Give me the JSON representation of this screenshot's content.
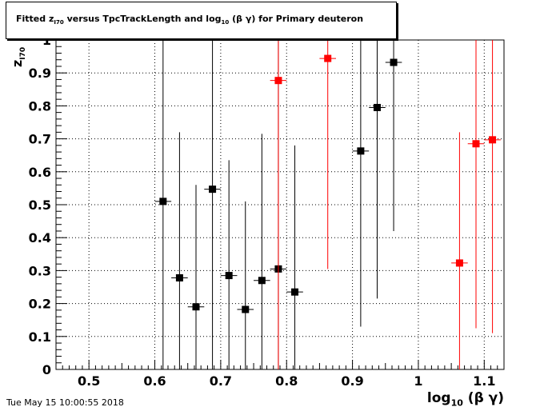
{
  "title": {
    "pre": "Fitted  z",
    "sub1": "I70",
    "mid": "  versus TpcTrackLength and log",
    "sub2": "10",
    "post": " (β γ) for Primary deuteron"
  },
  "datestamp": "Tue May 15 10:00:55 2018",
  "colors": {
    "black_series": "#000000",
    "red_series": "#ff0000",
    "grid": "#000000",
    "frame": "#000000"
  },
  "chart_data": {
    "type": "scatter",
    "title": "Fitted z_I70 versus TpcTrackLength and log10 (β γ) for Primary deuteron",
    "xlabel_main": "log",
    "xlabel_sub": "10",
    "xlabel_tail": " (β γ)",
    "ylabel_main": "z",
    "ylabel_sub": "I70",
    "xlim": [
      0.45,
      1.13
    ],
    "ylim": [
      0,
      1
    ],
    "grid": true,
    "x_ticks": [
      0.5,
      0.6,
      0.7,
      0.8,
      0.9,
      1,
      1.1
    ],
    "x_tick_labels": [
      "0.5",
      "0.6",
      "0.7",
      "0.8",
      "0.9",
      "1",
      "1.1"
    ],
    "y_ticks": [
      0,
      0.1,
      0.2,
      0.3,
      0.4,
      0.5,
      0.6,
      0.7,
      0.8,
      0.9,
      1
    ],
    "y_tick_labels": [
      "0",
      "0.1",
      "0.2",
      "0.3",
      "0.4",
      "0.5",
      "0.6",
      "0.7",
      "0.8",
      "0.9",
      "1"
    ],
    "series": [
      {
        "color": "#000000",
        "points": [
          {
            "x": 0.6125,
            "y": 0.51,
            "xerr": 0.0125,
            "ylo": 0.0,
            "yhi": 1.0
          },
          {
            "x": 0.6375,
            "y": 0.278,
            "xerr": 0.0125,
            "ylo": 0.0,
            "yhi": 0.72
          },
          {
            "x": 0.6625,
            "y": 0.19,
            "xerr": 0.0125,
            "ylo": 0.0,
            "yhi": 0.56
          },
          {
            "x": 0.6875,
            "y": 0.547,
            "xerr": 0.0125,
            "ylo": 0.0,
            "yhi": 1.0
          },
          {
            "x": 0.7125,
            "y": 0.285,
            "xerr": 0.0125,
            "ylo": 0.0,
            "yhi": 0.635
          },
          {
            "x": 0.7375,
            "y": 0.182,
            "xerr": 0.0125,
            "ylo": 0.0,
            "yhi": 0.51
          },
          {
            "x": 0.7625,
            "y": 0.27,
            "xerr": 0.0125,
            "ylo": 0.0,
            "yhi": 0.715
          },
          {
            "x": 0.7875,
            "y": 0.305,
            "xerr": 0.0125,
            "ylo": 0.0,
            "yhi": 1.0
          },
          {
            "x": 0.8125,
            "y": 0.235,
            "xerr": 0.0125,
            "ylo": 0.0,
            "yhi": 0.68
          },
          {
            "x": 0.9125,
            "y": 0.663,
            "xerr": 0.0125,
            "ylo": 0.13,
            "yhi": 1.0
          },
          {
            "x": 0.9375,
            "y": 0.795,
            "xerr": 0.0125,
            "ylo": 0.215,
            "yhi": 1.0
          },
          {
            "x": 0.9625,
            "y": 0.932,
            "xerr": 0.0125,
            "ylo": 0.42,
            "yhi": 1.0
          }
        ]
      },
      {
        "color": "#ff0000",
        "points": [
          {
            "x": 0.7875,
            "y": 0.877,
            "xerr": 0.0125,
            "ylo": 0.0,
            "yhi": 1.0
          },
          {
            "x": 0.8625,
            "y": 0.944,
            "xerr": 0.0125,
            "ylo": 0.305,
            "yhi": 1.0
          },
          {
            "x": 1.0625,
            "y": 0.323,
            "xerr": 0.0125,
            "ylo": 0.0,
            "yhi": 0.72
          },
          {
            "x": 1.0875,
            "y": 0.685,
            "xerr": 0.0125,
            "ylo": 0.125,
            "yhi": 1.0
          },
          {
            "x": 1.1125,
            "y": 0.697,
            "xerr": 0.0125,
            "ylo": 0.11,
            "yhi": 1.0
          }
        ]
      }
    ]
  }
}
